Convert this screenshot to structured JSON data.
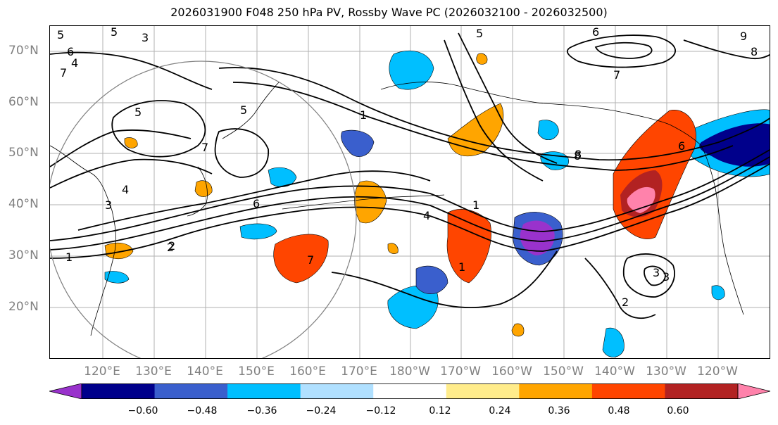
{
  "title": "2026031900 F048 250 hPa PV, Rossby Wave PC (2026032100 - 2026032500)",
  "lat_labels": [
    "70°N",
    "60°N",
    "50°N",
    "40°N",
    "30°N",
    "20°N"
  ],
  "lon_labels": [
    "120°E",
    "130°E",
    "140°E",
    "150°E",
    "160°E",
    "170°E",
    "180°W",
    "170°W",
    "160°W",
    "150°W",
    "140°W",
    "130°W",
    "120°W"
  ],
  "contour_labels": [
    "5",
    "6",
    "5",
    "3",
    "4",
    "7",
    "9",
    "8",
    "6",
    "7",
    "8",
    "5",
    "1",
    "5",
    "7",
    "4",
    "3",
    "6",
    "2",
    "1",
    "7",
    "4",
    "1",
    "8",
    "6",
    "5",
    "3",
    "2",
    "2",
    "3",
    "1"
  ],
  "colorbar": {
    "colors": [
      "#9932cc",
      "#00008b",
      "#3a5fcd",
      "#00bfff",
      "#b0e0ff",
      "#ffffff",
      "#ffec8b",
      "#ffa500",
      "#ff4500",
      "#b22222",
      "#ff82ab"
    ],
    "tick_labels": [
      "−0.60",
      "−0.48",
      "−0.36",
      "−0.24",
      "−0.12",
      "0.12",
      "0.24",
      "0.36",
      "0.48",
      "0.60"
    ]
  },
  "colors": {
    "contour": "#000000",
    "grid": "#a0a0a0",
    "axis_label": "#808080"
  }
}
